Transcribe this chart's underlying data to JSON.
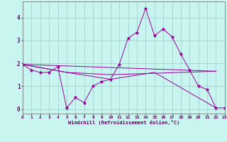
{
  "xlabel": "Windchill (Refroidissement éolien,°C)",
  "bg_color": "#c8f5f0",
  "grid_color": "#99cccc",
  "line_color": "#990099",
  "xlim": [
    0,
    23
  ],
  "ylim": [
    -0.2,
    4.7
  ],
  "xticks": [
    0,
    1,
    2,
    3,
    4,
    5,
    6,
    7,
    8,
    9,
    10,
    11,
    12,
    13,
    14,
    15,
    16,
    17,
    18,
    19,
    20,
    21,
    22,
    23
  ],
  "yticks": [
    0,
    1,
    2,
    3,
    4
  ],
  "series1_x": [
    0,
    1,
    2,
    3,
    4,
    5,
    6,
    7,
    8,
    9,
    10,
    11,
    12,
    13,
    14,
    15,
    16,
    17,
    18,
    19,
    20,
    21,
    22,
    23
  ],
  "series1_y": [
    1.95,
    1.7,
    1.6,
    1.6,
    1.85,
    0.05,
    0.5,
    0.28,
    1.0,
    1.2,
    1.3,
    1.95,
    3.1,
    3.35,
    4.4,
    3.2,
    3.5,
    3.15,
    2.4,
    1.7,
    1.0,
    0.85,
    0.05,
    0.05
  ],
  "series2_x": [
    0,
    5,
    10,
    15,
    22
  ],
  "series2_y": [
    1.95,
    1.6,
    1.3,
    1.6,
    0.05
  ],
  "series3_x": [
    0,
    5,
    10,
    22
  ],
  "series3_y": [
    1.95,
    1.6,
    1.5,
    1.65
  ],
  "series4_x": [
    0,
    22
  ],
  "series4_y": [
    1.95,
    1.65
  ]
}
